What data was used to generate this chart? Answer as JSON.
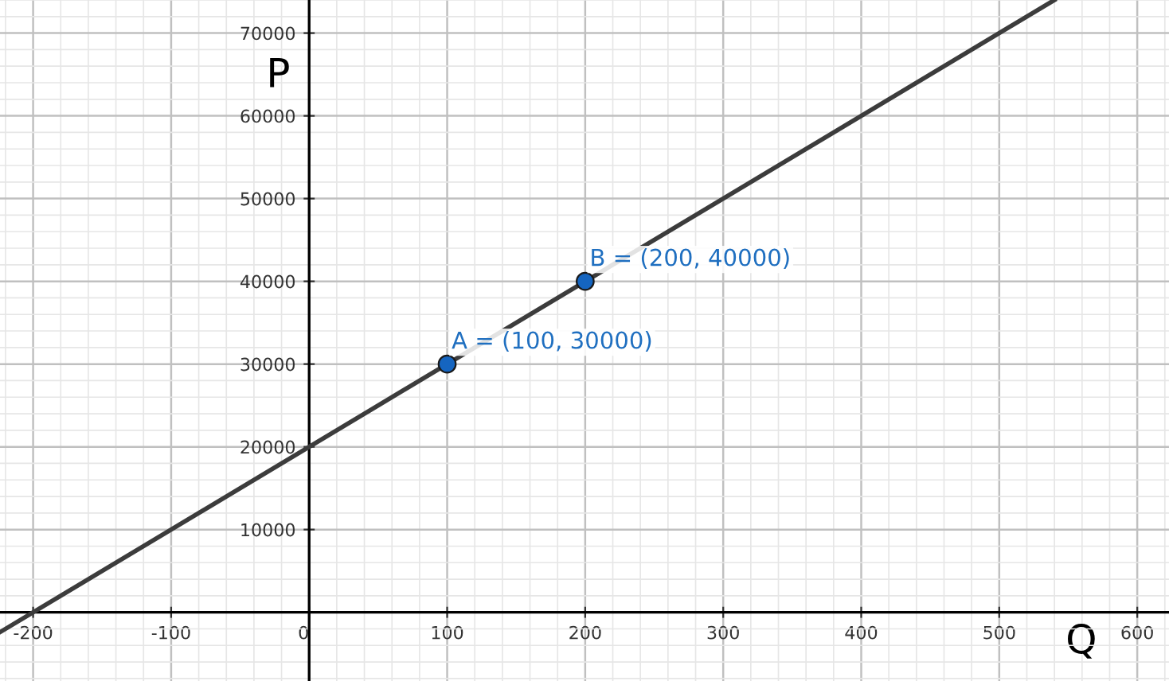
{
  "chart_data": {
    "type": "line",
    "xlabel": "Q",
    "ylabel": "P",
    "xlim": [
      -224,
      623
    ],
    "ylim": [
      -8300,
      74000
    ],
    "xticks": [
      -200,
      -100,
      0,
      100,
      200,
      300,
      400,
      500,
      600
    ],
    "yticks": [
      10000,
      20000,
      30000,
      40000,
      50000,
      60000,
      70000
    ],
    "grid": true,
    "series": [
      {
        "color": "#3c3c3c",
        "x": [
          -224,
          540
        ],
        "values": [
          -2400,
          74000
        ],
        "marker": "none"
      },
      {
        "type": "scatter",
        "color": "#1565c0",
        "x": [
          100,
          200
        ],
        "values": [
          30000,
          40000
        ],
        "marker": "circle"
      }
    ],
    "annotations": [
      {
        "text": "A = (100, 30000)",
        "x": 100,
        "y": 30000
      },
      {
        "text": "B = (200, 40000)",
        "x": 200,
        "y": 40000
      }
    ]
  }
}
